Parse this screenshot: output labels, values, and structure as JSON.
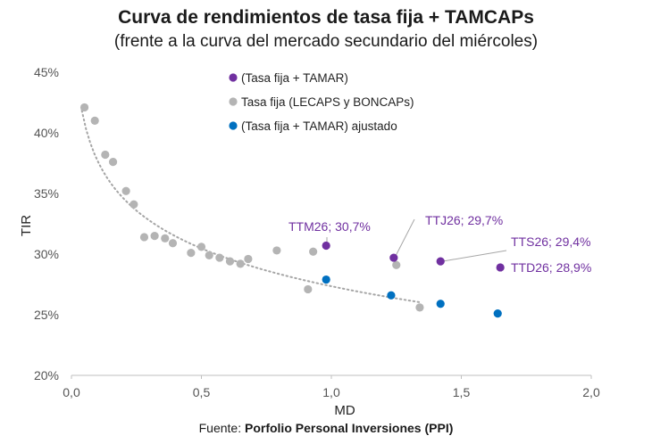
{
  "header": {
    "title": "Curva de rendimientos de tasa fija + TAMCAPs",
    "subtitle": "(frente a la curva del mercado secundario del miércoles)"
  },
  "footer": {
    "source_prefix": "Fuente: ",
    "source_name": "Porfolio Personal Inversiones (PPI)"
  },
  "colors": {
    "tasa_fija_tamar": "#7030a0",
    "tasa_fija": "#b4b4b4",
    "ajustado": "#0070c0",
    "trend": "#a6a6a6",
    "leader": "#a6a6a6"
  },
  "chart_data": {
    "type": "scatter",
    "xlabel": "MD",
    "ylabel": "TIR",
    "xlim": [
      0,
      2
    ],
    "ylim": [
      20,
      45
    ],
    "x_ticks": [
      "0,0",
      "0,5",
      "1,0",
      "1,5",
      "2,0"
    ],
    "y_ticks": [
      "20%",
      "25%",
      "30%",
      "35%",
      "40%",
      "45%"
    ],
    "grid": false,
    "legend_position": "top-center",
    "series": [
      {
        "name": "(Tasa fija + TAMAR)",
        "color": "#7030a0",
        "points": [
          {
            "x": 0.98,
            "y": 30.7,
            "label": "TTM26; 30,7%"
          },
          {
            "x": 1.24,
            "y": 29.7,
            "label": "TTJ26; 29,7%"
          },
          {
            "x": 1.42,
            "y": 29.4,
            "label": "TTS26; 29,4%"
          },
          {
            "x": 1.65,
            "y": 28.9,
            "label": "TTD26; 28,9%"
          }
        ]
      },
      {
        "name": "Tasa fija (LECAPS y BONCAPs)",
        "color": "#b4b4b4",
        "points": [
          {
            "x": 0.05,
            "y": 42.1
          },
          {
            "x": 0.09,
            "y": 41.0
          },
          {
            "x": 0.13,
            "y": 38.2
          },
          {
            "x": 0.16,
            "y": 37.6
          },
          {
            "x": 0.21,
            "y": 35.2
          },
          {
            "x": 0.24,
            "y": 34.1
          },
          {
            "x": 0.28,
            "y": 31.4
          },
          {
            "x": 0.32,
            "y": 31.5
          },
          {
            "x": 0.36,
            "y": 31.3
          },
          {
            "x": 0.39,
            "y": 30.9
          },
          {
            "x": 0.46,
            "y": 30.1
          },
          {
            "x": 0.5,
            "y": 30.6
          },
          {
            "x": 0.53,
            "y": 29.9
          },
          {
            "x": 0.57,
            "y": 29.7
          },
          {
            "x": 0.61,
            "y": 29.4
          },
          {
            "x": 0.65,
            "y": 29.2
          },
          {
            "x": 0.68,
            "y": 29.6
          },
          {
            "x": 0.79,
            "y": 30.3
          },
          {
            "x": 0.91,
            "y": 27.1
          },
          {
            "x": 0.93,
            "y": 30.2
          },
          {
            "x": 1.25,
            "y": 29.1
          },
          {
            "x": 1.34,
            "y": 25.6
          }
        ]
      },
      {
        "name": "(Tasa fija + TAMAR) ajustado",
        "color": "#0070c0",
        "points": [
          {
            "x": 0.98,
            "y": 27.9
          },
          {
            "x": 1.23,
            "y": 26.6
          },
          {
            "x": 1.42,
            "y": 25.9
          },
          {
            "x": 1.64,
            "y": 25.1
          }
        ]
      }
    ],
    "trendline": {
      "type": "logarithmic",
      "style": "dotted",
      "a": 27.35,
      "b": -4.5,
      "x_range": [
        0.04,
        1.34
      ]
    }
  }
}
